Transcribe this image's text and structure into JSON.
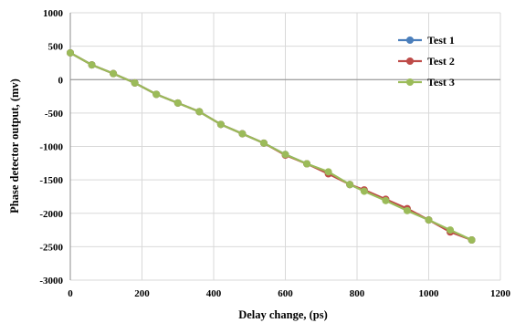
{
  "chart_data": {
    "type": "line",
    "title": "",
    "xlabel": "Delay change, (ps)",
    "ylabel": "Phase detector output, (mv)",
    "xlim": [
      0,
      1200
    ],
    "ylim": [
      -3000,
      1000
    ],
    "x_ticks": [
      "0",
      "200",
      "400",
      "600",
      "800",
      "1000",
      "1200"
    ],
    "y_ticks": [
      "1000",
      "500",
      "0",
      "-500",
      "-1000",
      "-1500",
      "-2000",
      "-2500",
      "-3000"
    ],
    "grid": true,
    "legend_position": "top-right",
    "x": [
      0,
      60,
      120,
      180,
      240,
      300,
      360,
      420,
      480,
      540,
      600,
      660,
      720,
      780,
      820,
      880,
      940,
      1000,
      1060,
      1120
    ],
    "series": [
      {
        "name": "Test 1",
        "color": "#4a7ebb",
        "values": [
          400,
          220,
          90,
          -50,
          -220,
          -350,
          -480,
          -670,
          -810,
          -950,
          -1120,
          -1260,
          -1390,
          -1570,
          -1660,
          -1800,
          -1950,
          -2100,
          -2260,
          -2400
        ]
      },
      {
        "name": "Test 2",
        "color": "#be4b48",
        "values": [
          400,
          220,
          90,
          -50,
          -220,
          -350,
          -480,
          -670,
          -810,
          -950,
          -1130,
          -1260,
          -1410,
          -1570,
          -1650,
          -1790,
          -1930,
          -2100,
          -2280,
          -2400
        ]
      },
      {
        "name": "Test 3",
        "color": "#9bbb59",
        "values": [
          400,
          220,
          90,
          -50,
          -220,
          -350,
          -480,
          -670,
          -810,
          -950,
          -1120,
          -1260,
          -1380,
          -1570,
          -1670,
          -1810,
          -1960,
          -2100,
          -2250,
          -2400
        ]
      }
    ]
  }
}
